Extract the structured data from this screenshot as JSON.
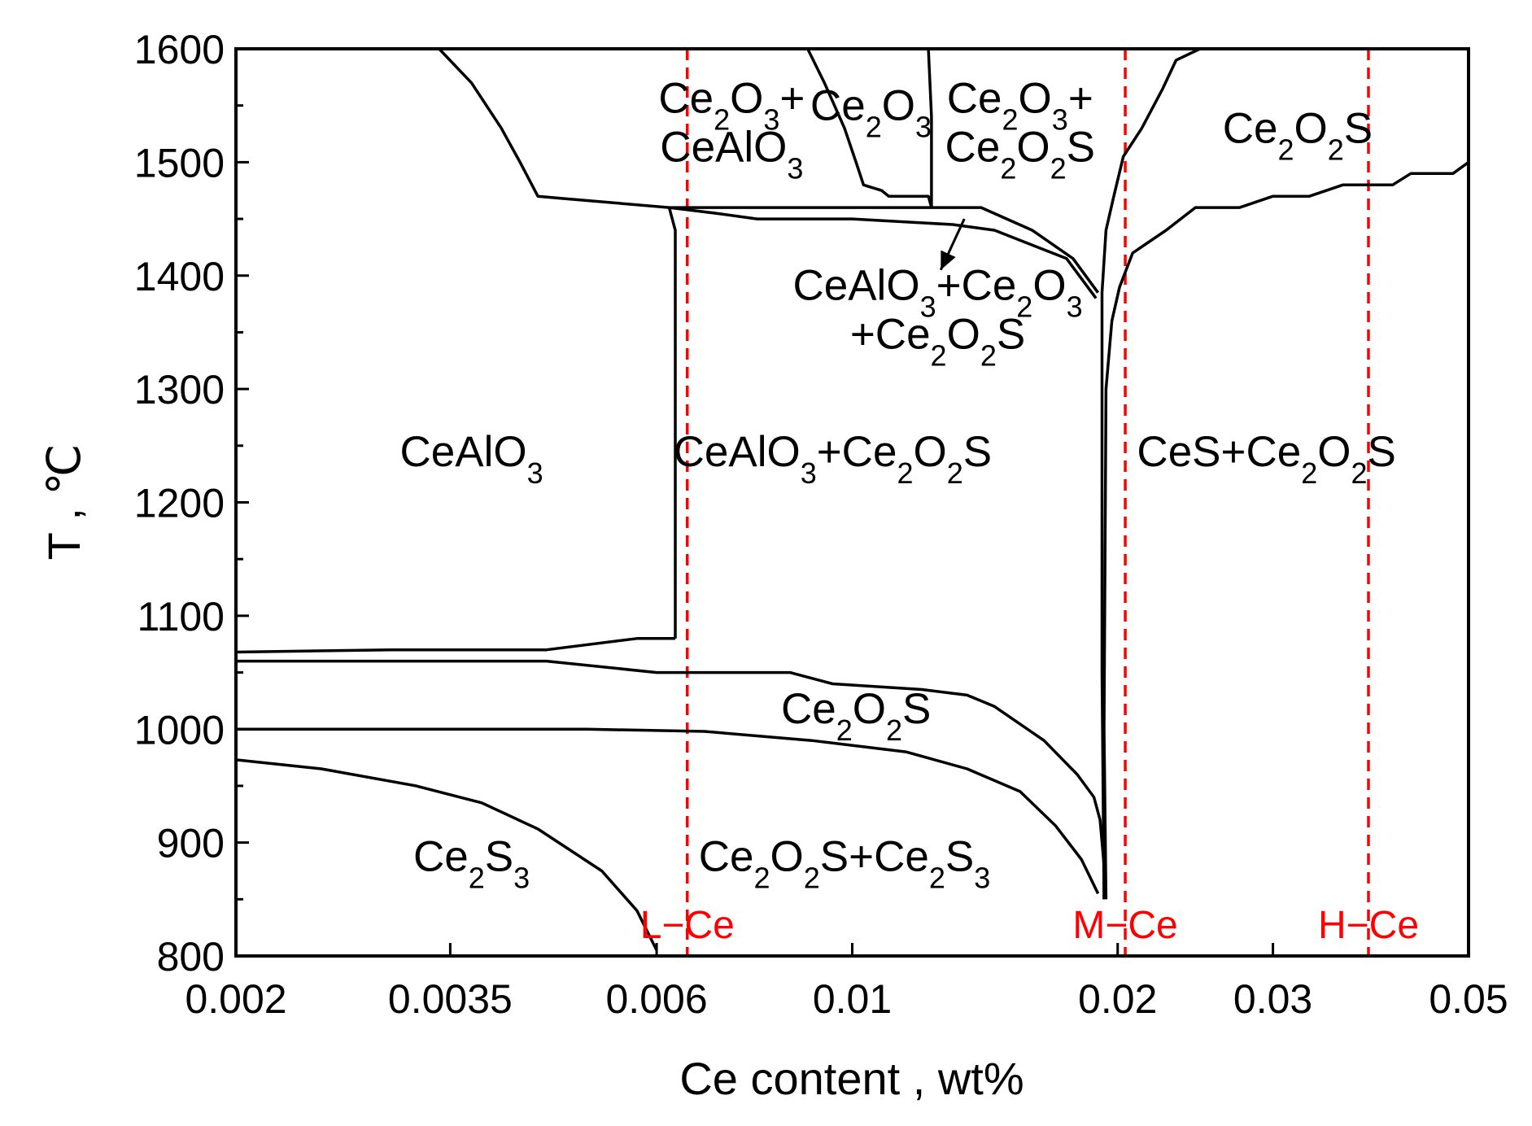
{
  "chart_data": {
    "type": "line",
    "subtype": "phase-diagram",
    "xlabel": "Ce content , wt%",
    "ylabel": "T , ℃",
    "x_scale": "log",
    "xlim": [
      0.002,
      0.05
    ],
    "ylim": [
      800,
      1600
    ],
    "x_ticks": [
      {
        "value": 0.002,
        "label": "0.002"
      },
      {
        "value": 0.0035,
        "label": "0.0035"
      },
      {
        "value": 0.006,
        "label": "0.006"
      },
      {
        "value": 0.01,
        "label": "0.01"
      },
      {
        "value": 0.02,
        "label": "0.02"
      },
      {
        "value": 0.03,
        "label": "0.03"
      },
      {
        "value": 0.05,
        "label": "0.05"
      }
    ],
    "y_ticks": [
      800,
      900,
      1000,
      1100,
      1200,
      1300,
      1400,
      1500,
      1600
    ],
    "grid": false,
    "legend": "none",
    "boundaries": [
      {
        "points": [
          [
            0.0034,
            1600
          ],
          [
            0.0037,
            1570
          ],
          [
            0.004,
            1530
          ],
          [
            0.0042,
            1500
          ],
          [
            0.0044,
            1470
          ],
          [
            0.0047,
            1468
          ],
          [
            0.0062,
            1460
          ]
        ]
      },
      {
        "points": [
          [
            0.0062,
            1460
          ],
          [
            0.007,
            1455
          ],
          [
            0.0078,
            1450
          ],
          [
            0.01,
            1450
          ],
          [
            0.013,
            1445
          ],
          [
            0.0145,
            1440
          ],
          [
            0.0175,
            1415
          ],
          [
            0.0189,
            1380
          ]
        ]
      },
      {
        "points": [
          [
            0.0062,
            1460
          ],
          [
            0.0095,
            1460
          ],
          [
            0.014,
            1460
          ],
          [
            0.016,
            1440
          ],
          [
            0.0178,
            1415
          ],
          [
            0.019,
            1385
          ]
        ]
      },
      {
        "points": [
          [
            0.0062,
            1460
          ],
          [
            0.0063,
            1440
          ],
          [
            0.0063,
            1080
          ]
        ]
      },
      {
        "points": [
          [
            0.0089,
            1600
          ],
          [
            0.0093,
            1570
          ],
          [
            0.0098,
            1530
          ],
          [
            0.0101,
            1500
          ],
          [
            0.0103,
            1480
          ],
          [
            0.0108,
            1475
          ],
          [
            0.011,
            1470
          ],
          [
            0.0122,
            1470
          ],
          [
            0.0123,
            1460
          ]
        ]
      },
      {
        "points": [
          [
            0.0122,
            1600
          ],
          [
            0.0123,
            1540
          ],
          [
            0.0123,
            1460
          ]
        ]
      },
      {
        "points": [
          [
            0.0248,
            1600
          ],
          [
            0.0233,
            1590
          ],
          [
            0.0225,
            1565
          ],
          [
            0.0213,
            1530
          ],
          [
            0.0203,
            1505
          ],
          [
            0.0198,
            1470
          ],
          [
            0.0194,
            1440
          ],
          [
            0.0192,
            1385
          ],
          [
            0.0192,
            1340
          ],
          [
            0.0192,
            1200
          ],
          [
            0.0192,
            1050
          ],
          [
            0.0193,
            850
          ]
        ]
      },
      {
        "points": [
          [
            0.0194,
            850
          ],
          [
            0.0193,
            1000
          ],
          [
            0.0194,
            1300
          ],
          [
            0.0197,
            1360
          ],
          [
            0.0201,
            1390
          ],
          [
            0.0208,
            1420
          ],
          [
            0.0227,
            1440
          ],
          [
            0.0245,
            1460
          ],
          [
            0.0275,
            1460
          ],
          [
            0.03,
            1470
          ],
          [
            0.033,
            1470
          ],
          [
            0.036,
            1480
          ],
          [
            0.041,
            1480
          ],
          [
            0.043,
            1490
          ],
          [
            0.048,
            1490
          ],
          [
            0.05,
            1500
          ]
        ]
      },
      {
        "points": [
          [
            0.002,
            1068
          ],
          [
            0.003,
            1070
          ],
          [
            0.0045,
            1070
          ],
          [
            0.0057,
            1080
          ],
          [
            0.0063,
            1080
          ]
        ]
      },
      {
        "points": [
          [
            0.002,
            1060
          ],
          [
            0.0045,
            1060
          ],
          [
            0.006,
            1050
          ],
          [
            0.0085,
            1050
          ],
          [
            0.0095,
            1040
          ],
          [
            0.012,
            1035
          ],
          [
            0.0135,
            1030
          ],
          [
            0.0145,
            1020
          ],
          [
            0.0165,
            990
          ],
          [
            0.018,
            960
          ],
          [
            0.0188,
            940
          ],
          [
            0.0191,
            920
          ],
          [
            0.0193,
            880
          ],
          [
            0.0193,
            850
          ]
        ]
      },
      {
        "points": [
          [
            0.002,
            1000
          ],
          [
            0.005,
            1000
          ],
          [
            0.0068,
            998
          ],
          [
            0.009,
            990
          ],
          [
            0.0115,
            980
          ],
          [
            0.0135,
            965
          ],
          [
            0.0155,
            945
          ],
          [
            0.017,
            915
          ],
          [
            0.0182,
            885
          ],
          [
            0.019,
            855
          ]
        ]
      },
      {
        "points": [
          [
            0.002,
            973
          ],
          [
            0.0025,
            965
          ],
          [
            0.0032,
            950
          ],
          [
            0.0038,
            935
          ],
          [
            0.0044,
            912
          ],
          [
            0.0052,
            875
          ],
          [
            0.0057,
            840
          ],
          [
            0.006,
            805
          ]
        ]
      }
    ],
    "region_labels": [
      {
        "id": "ce2o3-ceal03",
        "lines": [
          "Ce₂O₃+",
          "CeAlO₃"
        ],
        "x": 0.0073,
        "y": 1535
      },
      {
        "id": "ce2o3",
        "lines": [
          "Ce₂O₃"
        ],
        "x": 0.0105,
        "y": 1550
      },
      {
        "id": "ce2o3-ce2o2s",
        "lines": [
          "Ce₂O₃+",
          "Ce₂O₂S"
        ],
        "x": 0.0155,
        "y": 1535
      },
      {
        "id": "ce2o2s-top",
        "lines": [
          "Ce₂O₂S"
        ],
        "x": 0.032,
        "y": 1530
      },
      {
        "id": "cealo3-ce2o3-ce2o2s",
        "lines": [
          "CeAlO₃+Ce₂O₃",
          "+Ce₂O₂S"
        ],
        "x": 0.0125,
        "y": 1370
      },
      {
        "id": "cealo3",
        "lines": [
          "CeAlO₃"
        ],
        "x": 0.0037,
        "y": 1245
      },
      {
        "id": "cealo3-ce2o2s",
        "lines": [
          "CeAlO₃+Ce₂O₂S"
        ],
        "x": 0.0095,
        "y": 1245
      },
      {
        "id": "ces-ce2o2s",
        "lines": [
          "CeS+Ce₂O₂S"
        ],
        "x": 0.0295,
        "y": 1245
      },
      {
        "id": "ce2o2s-mid",
        "lines": [
          "Ce₂O₂S"
        ],
        "x": 0.0101,
        "y": 1018
      },
      {
        "id": "ce2s3",
        "lines": [
          "Ce₂S₃"
        ],
        "x": 0.0037,
        "y": 888
      },
      {
        "id": "ce2o2s-ce2s3",
        "lines": [
          "Ce₂O₂S+Ce₂S₃"
        ],
        "x": 0.0098,
        "y": 888
      }
    ],
    "reference_lines": [
      {
        "label": "L−Ce",
        "x": 0.0065,
        "color": "#ff0000"
      },
      {
        "label": "M−Ce",
        "x": 0.0204,
        "color": "#ff0000"
      },
      {
        "label": "H−Ce",
        "x": 0.0385,
        "color": "#ff0000"
      }
    ]
  }
}
